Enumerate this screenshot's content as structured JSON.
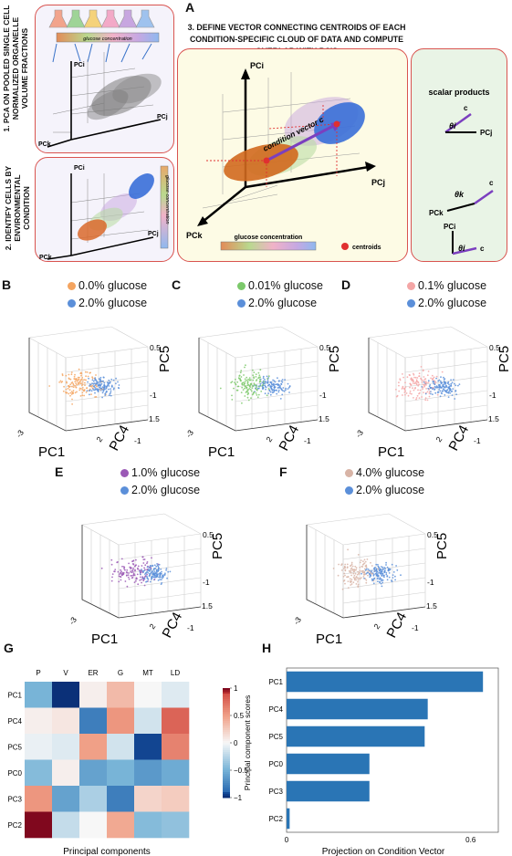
{
  "panel_a": {
    "letter": "A",
    "step1": "1. PCA ON POOLED SINGLE CELL NORMALIZED ORGANELLE VOLUME FRACTIONS",
    "step2": "2. IDENTIFY CELLS BY ENVIRONMENTAL CONDITION",
    "step3_line1": "3. DEFINE VECTOR CONNECTING CENTROIDS OF EACH",
    "step3_line2": "CONDITION-SPECIFIC CLOUD OF DATA AND COMPUTE OVERLAP WITH PC'S",
    "glucose_bar_small": "glucose concentration",
    "glucose_bar_vertical": "glucose concentration",
    "glucose_bar_main": "glucose concentration",
    "centroids_label": "centroids",
    "condition_vector_label": "condition vector c",
    "scalar_title": "scalar products",
    "axes": {
      "pci": "PCi",
      "pcj": "PCj",
      "pck": "PCk"
    },
    "scalar_items": [
      {
        "theta": "θi",
        "axis": "PCj",
        "vec": "c"
      },
      {
        "theta": "θk",
        "axis": "PCk",
        "vec": "c"
      },
      {
        "theta": "θi",
        "axis": "PCi",
        "vec": "c"
      }
    ],
    "colors": {
      "orange": "#d2691e",
      "blue": "#3a6fd8",
      "green": "#b7dba0",
      "purple": "#9c7cc7",
      "red": "#e03030",
      "vector": "#7b3fbf"
    }
  },
  "scatter_panels": [
    {
      "letter": "B",
      "legend": [
        {
          "label": "0.0% glucose",
          "color": "#f4a460"
        },
        {
          "label": "2.0% glucose",
          "color": "#5b8fd9"
        }
      ]
    },
    {
      "letter": "C",
      "legend": [
        {
          "label": "0.01% glucose",
          "color": "#7cc96b"
        },
        {
          "label": "2.0% glucose",
          "color": "#5b8fd9"
        }
      ]
    },
    {
      "letter": "D",
      "legend": [
        {
          "label": "0.1% glucose",
          "color": "#f4a6a6"
        },
        {
          "label": "2.0% glucose",
          "color": "#5b8fd9"
        }
      ]
    },
    {
      "letter": "E",
      "legend": [
        {
          "label": "1.0% glucose",
          "color": "#9b59b6"
        },
        {
          "label": "2.0% glucose",
          "color": "#5b8fd9"
        }
      ]
    },
    {
      "letter": "F",
      "legend": [
        {
          "label": "4.0% glucose",
          "color": "#d8b4a6"
        },
        {
          "label": "2.0% glucose",
          "color": "#5b8fd9"
        }
      ]
    }
  ],
  "scatter_axes": {
    "x": "PC1",
    "y": "PC4",
    "z": "PC5",
    "x_ticks": [
      "-3",
      "2"
    ],
    "y_ticks": [
      "-1",
      "1.5"
    ],
    "z_ticks": [
      "0.5",
      "-1"
    ]
  },
  "chart_data": [
    {
      "type": "heatmap",
      "panel": "G",
      "columns": [
        "P",
        "V",
        "ER",
        "G",
        "MT",
        "LD"
      ],
      "rows": [
        "PC1",
        "PC4",
        "PC5",
        "PC0",
        "PC3",
        "PC2"
      ],
      "values": [
        [
          -0.5,
          -1.0,
          0.05,
          0.35,
          0.0,
          -0.1
        ],
        [
          0.05,
          0.1,
          -0.8,
          0.55,
          -0.15,
          0.8
        ],
        [
          -0.05,
          -0.1,
          0.5,
          -0.15,
          -0.95,
          0.65
        ],
        [
          -0.45,
          0.05,
          -0.6,
          -0.5,
          -0.65,
          -0.55
        ],
        [
          0.55,
          -0.6,
          -0.3,
          -0.8,
          0.2,
          0.25
        ],
        [
          1.0,
          -0.2,
          0.0,
          0.45,
          -0.45,
          -0.4
        ]
      ],
      "xlabel": "Principal components",
      "colorbar_label": "Principal component scores",
      "colorbar_ticks": [
        "1",
        "0.5",
        "0",
        "−0.5",
        "−1"
      ],
      "vmin": -1,
      "vmax": 1
    },
    {
      "type": "bar",
      "panel": "H",
      "orientation": "horizontal",
      "categories": [
        "PC1",
        "PC4",
        "PC5",
        "PC0",
        "PC3",
        "PC2"
      ],
      "values": [
        0.64,
        0.46,
        0.45,
        0.27,
        0.27,
        0.01
      ],
      "xlabel": "Projection on Condition Vector",
      "xticks": [
        "0",
        "0.6"
      ],
      "xlim": [
        0,
        0.69
      ],
      "color": "#2a75b5"
    }
  ]
}
